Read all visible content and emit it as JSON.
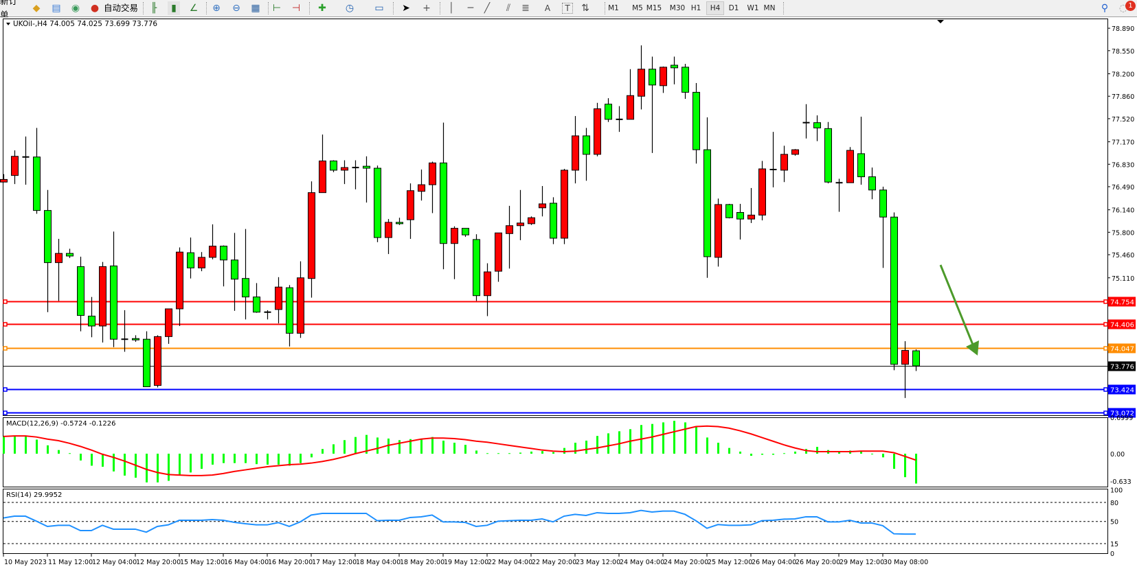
{
  "toolbar": {
    "new_order": "新订单",
    "auto_trading": "自动交易",
    "icons": [
      "market-watch-icon",
      "navigator-icon",
      "signals-icon",
      "auto-trading-icon",
      "bar-chart-icon",
      "candlestick-icon",
      "line-chart-icon",
      "zoom-in-icon",
      "zoom-out-icon",
      "tile-windows-icon",
      "chart-shift-icon",
      "autoscroll-icon",
      "new-chart-icon",
      "periods-icon",
      "templates-icon",
      "cursor-icon",
      "crosshair-icon",
      "vertical-line-icon",
      "horizontal-line-icon",
      "trendline-icon",
      "fibonacci-channel-icon",
      "fibonacci-icon",
      "text-icon",
      "text-label-icon",
      "arrows-icon"
    ],
    "text_label": "A",
    "text_label2": "T",
    "timeframes": [
      "M1",
      "M5",
      "M15",
      "M30",
      "H1",
      "H4",
      "D1",
      "W1",
      "MN"
    ],
    "active_timeframe": "H4",
    "notification_count": "1"
  },
  "chart": {
    "symbol_header": "UKOil-,H4  74.005 74.025 73.699 73.776",
    "colors": {
      "bull": "#ff0000",
      "bear": "#00ff00",
      "macd_hist": "#00ff00",
      "macd_signal": "#ff0000",
      "rsi": "#1e90ff",
      "arrow": "#4c9a2a"
    },
    "price_ticks": [
      "78.890",
      "78.550",
      "78.200",
      "77.860",
      "77.520",
      "77.170",
      "76.830",
      "76.490",
      "76.140",
      "75.800",
      "75.460",
      "75.110"
    ],
    "levels": [
      {
        "price": "74.754",
        "color": "#ff0000"
      },
      {
        "price": "74.406",
        "color": "#ff0000"
      },
      {
        "price": "74.047",
        "color": "#ff8c00"
      },
      {
        "price": "73.424",
        "color": "#0000ff"
      },
      {
        "price": "73.072",
        "color": "#0000ff"
      }
    ],
    "current_price": "73.776",
    "time_labels": [
      "10 May 2023",
      "11 May 12:00",
      "12 May 04:00",
      "12 May 20:00",
      "15 May 12:00",
      "16 May 04:00",
      "16 May 20:00",
      "17 May 12:00",
      "18 May 04:00",
      "18 May 20:00",
      "19 May 12:00",
      "22 May 04:00",
      "22 May 20:00",
      "23 May 12:00",
      "24 May 04:00",
      "24 May 20:00",
      "25 May 12:00",
      "26 May 04:00",
      "26 May 20:00",
      "29 May 12:00",
      "30 May 08:00"
    ],
    "annotation": "down-arrow"
  },
  "macd": {
    "label": "MACD(12,26,9) -0.5724 -0.1226",
    "axis_labels": [
      "0.6999",
      "0.00",
      "-0.633"
    ]
  },
  "rsi": {
    "label": "RSI(14) 29.9952",
    "axis_labels": [
      "100",
      "80",
      "50",
      "15",
      "0"
    ],
    "levels": [
      80,
      50,
      15
    ]
  },
  "chart_data": {
    "type": "candlestick",
    "ohlc": [
      [
        76.56,
        76.68,
        76.56,
        76.6
      ],
      [
        76.66,
        77.04,
        76.53,
        76.95
      ],
      [
        76.94,
        77.25,
        76.52,
        76.94
      ],
      [
        76.94,
        77.38,
        76.08,
        76.13
      ],
      [
        76.13,
        76.44,
        74.59,
        75.34
      ],
      [
        75.34,
        75.7,
        74.76,
        75.48
      ],
      [
        75.48,
        75.55,
        75.41,
        75.44
      ],
      [
        75.28,
        75.43,
        74.3,
        74.54
      ],
      [
        74.53,
        74.82,
        74.21,
        74.38
      ],
      [
        74.38,
        75.35,
        74.13,
        75.28
      ],
      [
        75.29,
        75.81,
        74.06,
        74.18
      ],
      [
        74.18,
        74.62,
        73.99,
        74.18
      ],
      [
        74.19,
        74.24,
        74.14,
        74.17
      ],
      [
        74.18,
        74.3,
        73.46,
        73.46
      ],
      [
        73.48,
        74.24,
        73.45,
        74.22
      ],
      [
        74.22,
        74.64,
        74.11,
        74.64
      ],
      [
        74.64,
        75.57,
        74.38,
        75.5
      ],
      [
        75.49,
        75.72,
        75.1,
        75.26
      ],
      [
        75.26,
        75.5,
        75.21,
        75.42
      ],
      [
        75.42,
        75.92,
        75.39,
        75.59
      ],
      [
        75.59,
        75.6,
        74.98,
        75.38
      ],
      [
        75.38,
        75.79,
        74.61,
        75.09
      ],
      [
        75.1,
        75.85,
        74.48,
        74.82
      ],
      [
        74.82,
        75.03,
        74.58,
        74.59
      ],
      [
        74.59,
        74.62,
        74.48,
        74.59
      ],
      [
        74.63,
        75.12,
        74.42,
        74.97
      ],
      [
        74.96,
        75.0,
        74.07,
        74.27
      ],
      [
        74.27,
        75.36,
        74.2,
        75.11
      ],
      [
        75.1,
        76.57,
        74.81,
        76.4
      ],
      [
        76.4,
        77.28,
        76.4,
        76.88
      ],
      [
        76.88,
        76.89,
        76.71,
        76.74
      ],
      [
        76.74,
        76.89,
        76.53,
        76.78
      ],
      [
        76.78,
        76.89,
        76.45,
        76.78
      ],
      [
        76.8,
        76.95,
        76.25,
        76.77
      ],
      [
        76.77,
        76.81,
        75.65,
        75.72
      ],
      [
        75.72,
        76.0,
        75.47,
        75.95
      ],
      [
        75.95,
        76.02,
        75.91,
        75.93
      ],
      [
        75.99,
        76.54,
        75.7,
        76.43
      ],
      [
        76.42,
        76.75,
        76.28,
        76.52
      ],
      [
        76.52,
        76.87,
        76.09,
        76.85
      ],
      [
        76.85,
        77.46,
        75.24,
        75.63
      ],
      [
        75.63,
        75.89,
        75.09,
        75.86
      ],
      [
        75.86,
        75.86,
        75.73,
        75.76
      ],
      [
        75.69,
        75.77,
        74.76,
        74.84
      ],
      [
        74.84,
        75.33,
        74.53,
        75.2
      ],
      [
        75.21,
        75.79,
        75.05,
        75.79
      ],
      [
        75.78,
        76.2,
        75.25,
        75.9
      ],
      [
        75.9,
        76.44,
        75.68,
        75.94
      ],
      [
        75.93,
        76.04,
        75.91,
        76.02
      ],
      [
        76.17,
        76.5,
        76.04,
        76.23
      ],
      [
        76.24,
        76.33,
        75.62,
        75.71
      ],
      [
        75.71,
        76.76,
        75.62,
        76.74
      ],
      [
        76.74,
        77.56,
        76.54,
        77.26
      ],
      [
        77.26,
        77.38,
        76.58,
        76.98
      ],
      [
        76.98,
        77.76,
        76.95,
        77.67
      ],
      [
        77.74,
        77.83,
        77.47,
        77.51
      ],
      [
        77.51,
        77.71,
        77.32,
        77.51
      ],
      [
        77.51,
        78.27,
        77.51,
        77.87
      ],
      [
        77.86,
        78.63,
        77.66,
        78.27
      ],
      [
        78.27,
        78.46,
        77.0,
        78.03
      ],
      [
        78.02,
        78.31,
        77.91,
        78.3
      ],
      [
        78.33,
        78.46,
        78.04,
        78.29
      ],
      [
        78.3,
        78.35,
        77.82,
        77.92
      ],
      [
        77.92,
        78.06,
        76.84,
        77.05
      ],
      [
        77.05,
        77.54,
        75.11,
        75.43
      ],
      [
        75.42,
        76.31,
        75.28,
        76.22
      ],
      [
        76.22,
        76.23,
        76.01,
        76.02
      ],
      [
        76.1,
        76.23,
        75.69,
        76.0
      ],
      [
        76.0,
        76.47,
        75.94,
        76.06
      ],
      [
        76.06,
        76.88,
        75.98,
        76.76
      ],
      [
        76.75,
        77.32,
        76.48,
        76.75
      ],
      [
        76.74,
        77.11,
        76.56,
        76.98
      ],
      [
        76.98,
        77.06,
        76.96,
        77.05
      ],
      [
        77.46,
        77.74,
        77.22,
        77.46
      ],
      [
        77.46,
        77.57,
        77.18,
        77.38
      ],
      [
        77.37,
        77.47,
        76.54,
        76.56
      ],
      [
        76.55,
        76.61,
        76.11,
        76.55
      ],
      [
        76.55,
        77.09,
        76.55,
        77.04
      ],
      [
        76.99,
        77.55,
        76.52,
        76.64
      ],
      [
        76.64,
        76.78,
        76.3,
        76.44
      ],
      [
        76.44,
        76.49,
        75.26,
        76.03
      ],
      [
        76.03,
        76.1,
        73.71,
        73.8
      ],
      [
        73.8,
        74.15,
        73.29,
        74.01
      ],
      [
        74.005,
        74.025,
        73.699,
        73.776
      ]
    ],
    "ylim": [
      73.03,
      79.04
    ],
    "macd_histogram": [
      0.33,
      0.33,
      0.33,
      0.27,
      0.16,
      0.07,
      0.01,
      -0.13,
      -0.23,
      -0.25,
      -0.34,
      -0.42,
      -0.46,
      -0.55,
      -0.55,
      -0.52,
      -0.4,
      -0.36,
      -0.29,
      -0.21,
      -0.18,
      -0.18,
      -0.18,
      -0.2,
      -0.21,
      -0.21,
      -0.23,
      -0.18,
      -0.07,
      0.09,
      0.18,
      0.26,
      0.32,
      0.36,
      0.31,
      0.29,
      0.26,
      0.28,
      0.28,
      0.32,
      0.25,
      0.21,
      0.17,
      0.06,
      0.01,
      0.01,
      0.01,
      0.02,
      0.04,
      0.05,
      0.03,
      0.11,
      0.21,
      0.25,
      0.34,
      0.39,
      0.43,
      0.47,
      0.55,
      0.57,
      0.6,
      0.63,
      0.6,
      0.51,
      0.31,
      0.21,
      0.11,
      0.04,
      -0.04,
      -0.02,
      -0.02,
      0.01,
      0.04,
      0.09,
      0.13,
      0.07,
      0.04,
      0.06,
      0.04,
      -0.01,
      -0.07,
      -0.29,
      -0.45,
      -0.5724
    ],
    "macd_signal": [
      0.33,
      0.34,
      0.34,
      0.32,
      0.28,
      0.25,
      0.2,
      0.14,
      0.07,
      -0.01,
      -0.07,
      -0.14,
      -0.22,
      -0.3,
      -0.36,
      -0.4,
      -0.41,
      -0.42,
      -0.42,
      -0.41,
      -0.38,
      -0.34,
      -0.31,
      -0.28,
      -0.25,
      -0.23,
      -0.21,
      -0.2,
      -0.18,
      -0.15,
      -0.11,
      -0.06,
      0.0,
      0.05,
      0.1,
      0.16,
      0.2,
      0.24,
      0.28,
      0.3,
      0.3,
      0.29,
      0.27,
      0.24,
      0.22,
      0.19,
      0.16,
      0.13,
      0.1,
      0.07,
      0.05,
      0.04,
      0.05,
      0.08,
      0.11,
      0.15,
      0.19,
      0.24,
      0.28,
      0.32,
      0.37,
      0.42,
      0.47,
      0.52,
      0.53,
      0.52,
      0.49,
      0.44,
      0.38,
      0.31,
      0.24,
      0.17,
      0.11,
      0.06,
      0.04,
      0.04,
      0.04,
      0.04,
      0.05,
      0.05,
      0.05,
      0.02,
      -0.05,
      -0.1226
    ],
    "macd_ylim": [
      -0.633,
      0.6999
    ],
    "rsi": [
      55.5,
      58.3,
      58.3,
      50.4,
      42.1,
      43.9,
      43.9,
      35.6,
      35.6,
      43.9,
      37.8,
      37.8,
      37.8,
      33.1,
      42.1,
      44.6,
      51.8,
      51.8,
      51.8,
      52.9,
      51.8,
      48.6,
      46.4,
      44.6,
      44.6,
      48.2,
      42.1,
      49.3,
      60.1,
      62.7,
      62.7,
      62.7,
      62.7,
      62.7,
      51.1,
      51.8,
      51.8,
      56.2,
      57.3,
      60.1,
      49.3,
      49.3,
      48.5,
      42.1,
      43.9,
      50.4,
      51.1,
      51.8,
      51.8,
      54.0,
      49.3,
      58.3,
      61.2,
      59.4,
      63.8,
      62.7,
      62.7,
      63.8,
      67.4,
      64.8,
      66.3,
      66.3,
      61.2,
      51.1,
      39.2,
      45.0,
      43.9,
      43.9,
      44.6,
      51.1,
      51.8,
      53.6,
      54.0,
      57.3,
      57.3,
      49.3,
      49.3,
      51.8,
      47.5,
      47.5,
      43.2,
      30.5,
      30.0,
      29.9952
    ],
    "rsi_ylim": [
      0,
      100
    ]
  }
}
